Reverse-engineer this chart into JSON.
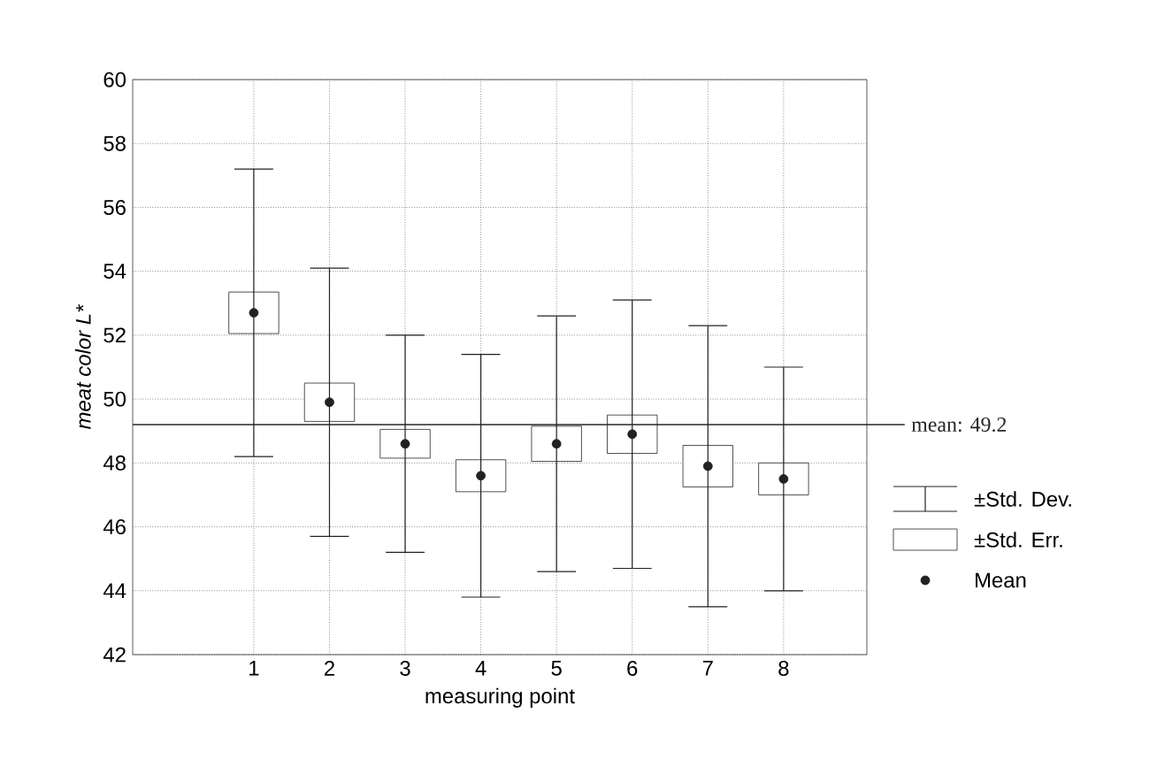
{
  "chart_data": {
    "type": "scatter",
    "xlabel": "measuring point",
    "ylabel": "meat color L*",
    "categories": [
      "1",
      "2",
      "3",
      "4",
      "5",
      "6",
      "7",
      "8"
    ],
    "series": [
      {
        "name": "±Std. Err.",
        "type": "bar",
        "color": "#ffffff",
        "base": [
          52.05,
          49.3,
          48.15,
          47.1,
          48.05,
          48.3,
          47.25,
          47.0
        ],
        "values": [
          1.3,
          1.2,
          0.9,
          1.0,
          1.1,
          1.2,
          1.3,
          1.0
        ]
      },
      {
        "name": "Mean",
        "marker": "circle",
        "color": "#222222",
        "values": [
          52.7,
          49.9,
          48.6,
          47.6,
          48.6,
          48.9,
          47.9,
          47.5
        ],
        "errors": [
          4.5,
          4.2,
          3.4,
          3.8,
          4.0,
          4.2,
          4.4,
          3.5
        ]
      }
    ],
    "annotations": [
      "±Std. Dev."
    ],
    "ylim": [
      42,
      60
    ],
    "yticks": [
      42,
      44,
      46,
      48,
      50,
      52,
      54,
      56,
      58,
      60
    ],
    "grid": true,
    "legend": "right",
    "ref_lines": [
      {
        "axis": "y",
        "value": 49.2,
        "label": "mean: 49.2"
      }
    ]
  }
}
